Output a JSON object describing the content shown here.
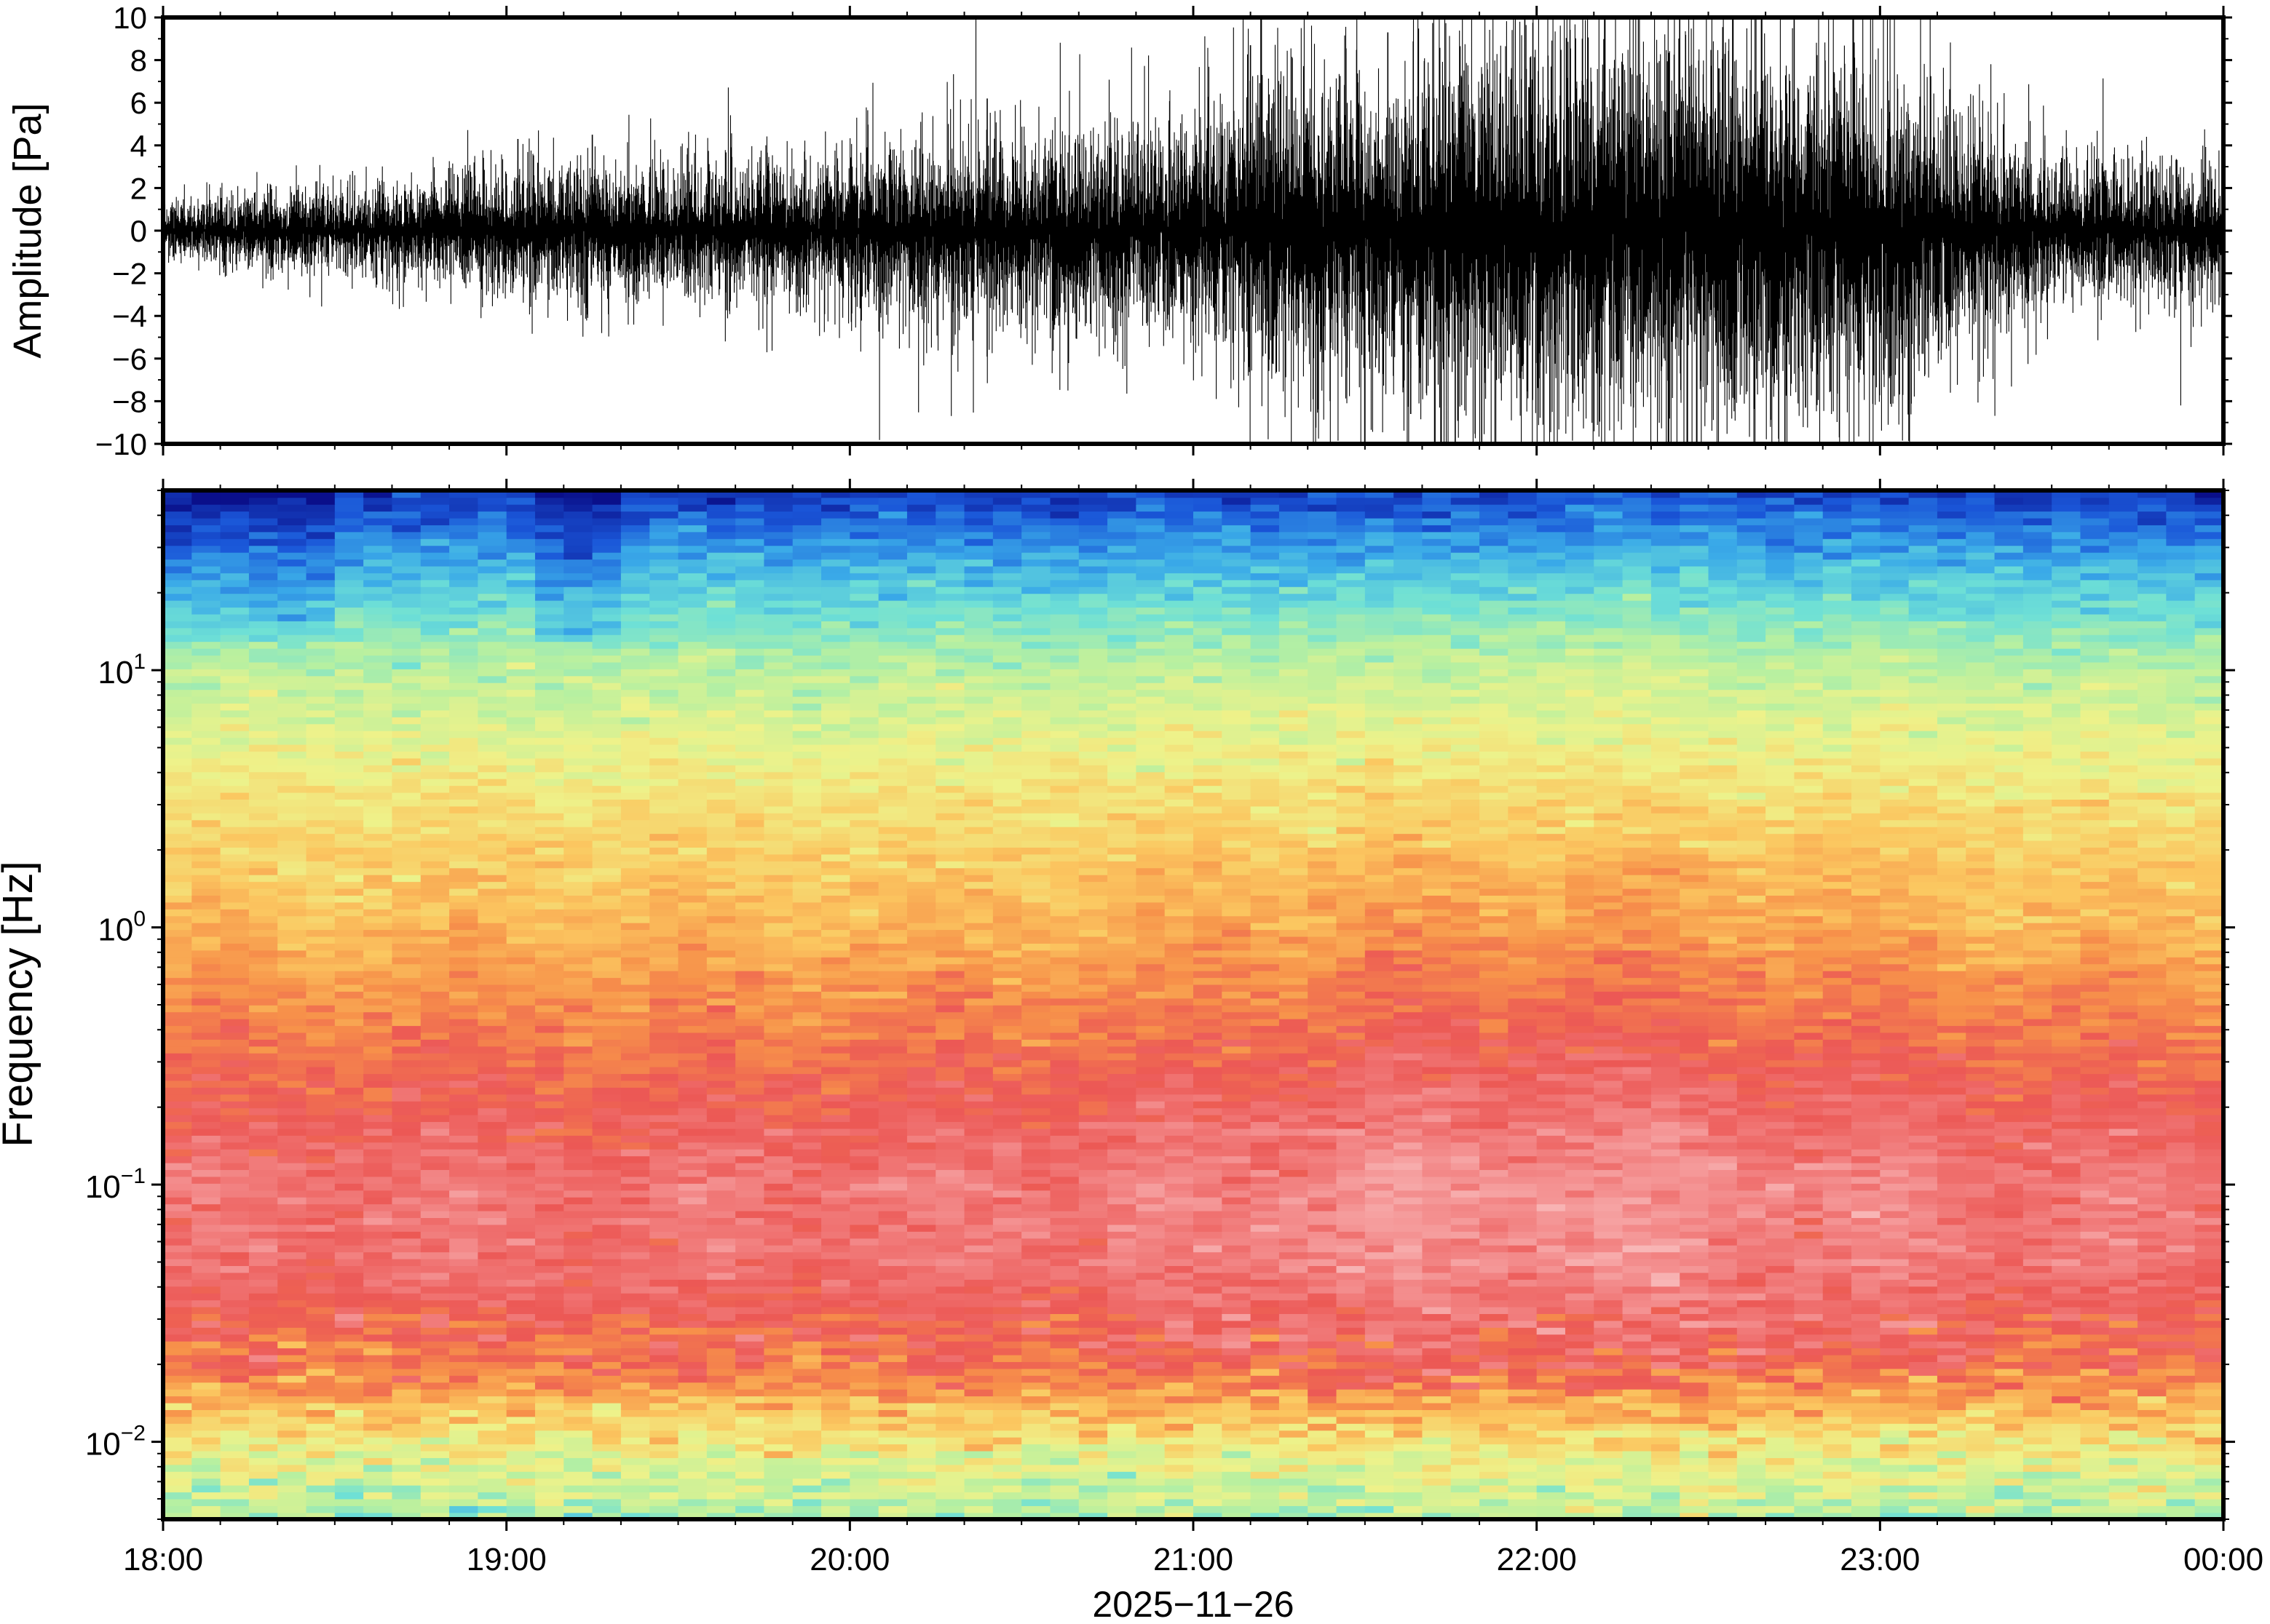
{
  "chart_data": [
    {
      "type": "line",
      "panel": "waveform",
      "ylabel": "Amplitude [Pa]",
      "ylim": [
        -10,
        10
      ],
      "yticks": [
        -10,
        -8,
        -6,
        -4,
        -2,
        0,
        2,
        4,
        6,
        8,
        10
      ],
      "ytick_labels": [
        "−10",
        "−8",
        "−6",
        "−4",
        "−2",
        "0",
        "2",
        "4",
        "6",
        "8",
        "10"
      ],
      "xlim": [
        "18:00",
        "00:00"
      ],
      "series": [
        {
          "color": "#000000",
          "envelope_hours": [
            0,
            0.5,
            1.0,
            1.5,
            2.0,
            2.5,
            3.0,
            3.25,
            3.5,
            4.0,
            4.5,
            5.0,
            5.5,
            6.0
          ],
          "envelope_pa": [
            0.9,
            1.2,
            1.8,
            1.9,
            2.2,
            2.6,
            3.1,
            4.6,
            4.3,
            5.8,
            5.6,
            4.7,
            2.0,
            1.8
          ],
          "peak_amplitudes": [
            {
              "time": "19:02",
              "pa": 4.3
            },
            {
              "time": "19:15",
              "pa": 4.5
            },
            {
              "time": "20:24",
              "pa": 6.2
            },
            {
              "time": "21:10",
              "pa": 8.7
            },
            {
              "time": "21:30",
              "pa": -10
            },
            {
              "time": "21:34",
              "pa": 9.3
            },
            {
              "time": "21:38",
              "pa": -8.6
            },
            {
              "time": "22:08",
              "pa": 9.0
            },
            {
              "time": "22:25",
              "pa": 10
            },
            {
              "time": "22:28",
              "pa": -10
            },
            {
              "time": "22:45",
              "pa": 10
            },
            {
              "time": "22:47",
              "pa": -8.3
            }
          ]
        }
      ]
    },
    {
      "type": "heatmap",
      "panel": "spectrogram",
      "ylabel": "Frequency [Hz]",
      "xlabel": "2025−11−26",
      "yscale": "log",
      "ylim": [
        0.005,
        50
      ],
      "yticks": [
        {
          "value": 0.01,
          "base": "10",
          "exp": "−2"
        },
        {
          "value": 0.1,
          "base": "10",
          "exp": "−1"
        },
        {
          "value": 1,
          "base": "10",
          "exp": "0"
        },
        {
          "value": 10,
          "base": "10",
          "exp": "1"
        }
      ],
      "xlim": [
        "18:00",
        "00:00"
      ],
      "x_tick_labels": [
        "18:00",
        "19:00",
        "20:00",
        "21:00",
        "22:00",
        "23:00",
        "00:00"
      ],
      "colormap": [
        "#0a0f8a",
        "#1a56d8",
        "#3aaae8",
        "#6ee0d6",
        "#b8f0a0",
        "#eef28a",
        "#fbc760",
        "#f7924a",
        "#ec5855",
        "#f38a8a",
        "#f9c0c0"
      ],
      "band_profile": [
        {
          "freq_hz": 0.005,
          "level": 0.38
        },
        {
          "freq_hz": 0.01,
          "level": 0.52
        },
        {
          "freq_hz": 0.02,
          "level": 0.75
        },
        {
          "freq_hz": 0.05,
          "level": 0.85
        },
        {
          "freq_hz": 0.1,
          "level": 0.86
        },
        {
          "freq_hz": 0.3,
          "level": 0.76
        },
        {
          "freq_hz": 1,
          "level": 0.63
        },
        {
          "freq_hz": 3,
          "level": 0.54
        },
        {
          "freq_hz": 10,
          "level": 0.41
        },
        {
          "freq_hz": 20,
          "level": 0.27
        },
        {
          "freq_hz": 50,
          "level": 0.06
        }
      ]
    }
  ]
}
